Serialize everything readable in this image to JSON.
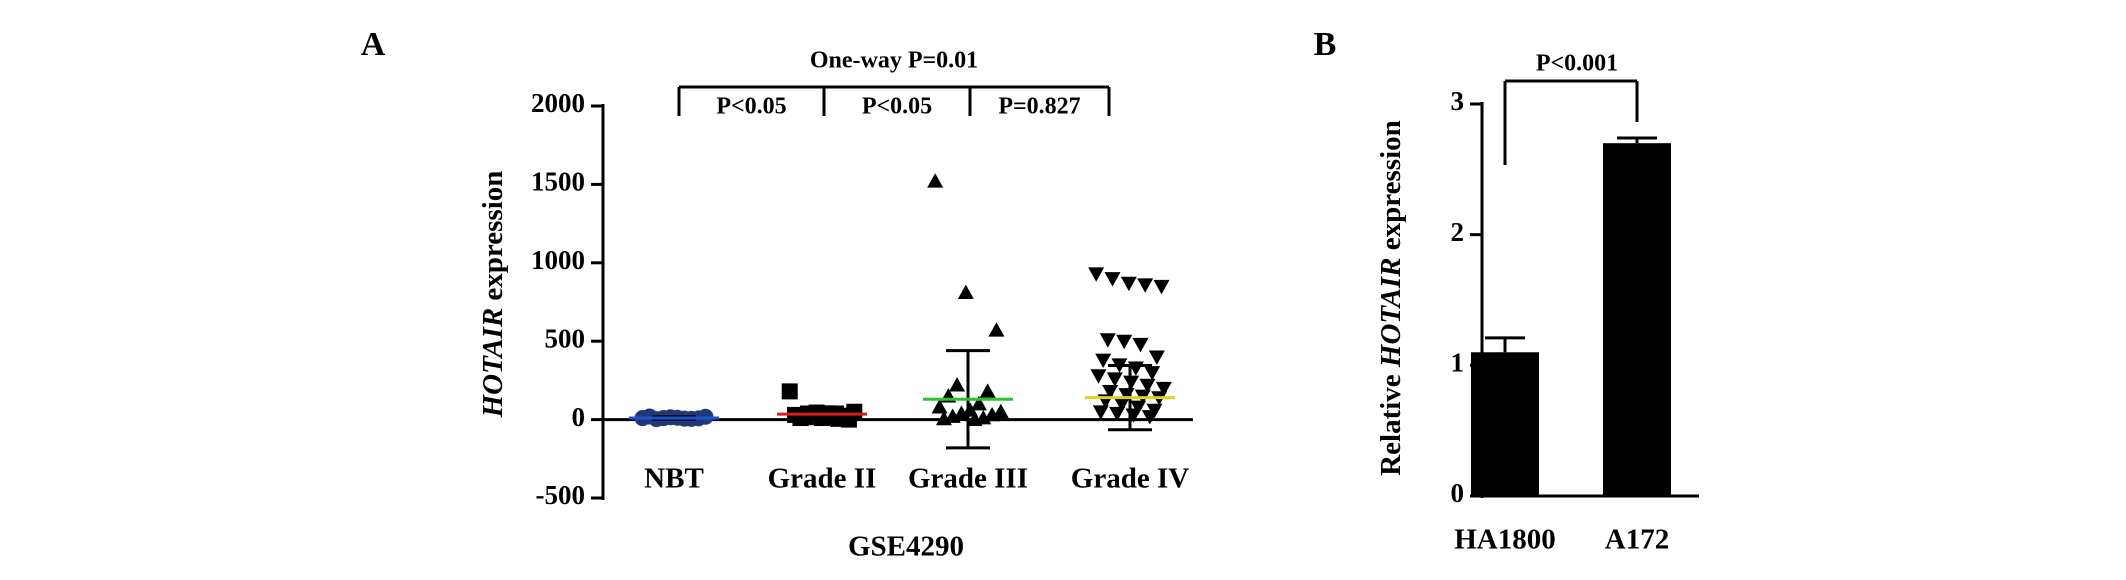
{
  "chart_data": [
    {
      "type": "dot_plot",
      "panel": "A",
      "ylabel": [
        "HOTAIR",
        "expression"
      ],
      "xlabel": "GSE4290",
      "categories": [
        "NBT",
        "Grade II",
        "Grade III",
        "Grade IV"
      ],
      "ylim": [
        -500,
        2000
      ],
      "yticks": [
        -500,
        0,
        500,
        1000,
        1500,
        2000
      ],
      "groups": [
        {
          "marker": "circle",
          "color": "#1f3a7a",
          "mean_color": "#2050d0",
          "mean": 10,
          "sd": 8,
          "values": [
            10,
            5,
            15,
            20,
            8,
            12,
            3,
            18,
            6,
            10
          ]
        },
        {
          "marker": "square",
          "color": "#000000",
          "mean_color": "#d02020",
          "mean": 35,
          "sd": 45,
          "values": [
            180,
            40,
            30,
            20,
            10,
            5,
            15,
            25,
            35,
            0,
            45,
            50,
            10
          ]
        },
        {
          "marker": "triangle-up",
          "color": "#000000",
          "mean_color": "#30c030",
          "mean": 130,
          "sd": 310,
          "values": [
            1520,
            810,
            570,
            220,
            180,
            150,
            100,
            80,
            60,
            50,
            40,
            30,
            20,
            10,
            5,
            0
          ]
        },
        {
          "marker": "triangle-down",
          "color": "#000000",
          "mean_color": "#e0d020",
          "mean": 140,
          "sd": 205,
          "values": [
            930,
            900,
            870,
            860,
            850,
            510,
            500,
            480,
            400,
            380,
            350,
            330,
            300,
            280,
            260,
            240,
            220,
            200,
            180,
            160,
            150,
            140,
            120,
            100,
            80,
            60,
            50,
            40,
            30,
            20
          ]
        }
      ],
      "annotations": [
        "One-way P=0.01",
        "P<0.05",
        "P<0.05",
        "P=0.827"
      ]
    },
    {
      "type": "bar",
      "panel": "B",
      "ylabel": [
        "Relative",
        "HOTAIR",
        "expression"
      ],
      "categories": [
        "HA1800",
        "A172"
      ],
      "values": [
        1.1,
        2.7
      ],
      "errors": [
        0.11,
        0.04
      ],
      "color": "#000000",
      "ylim": [
        0,
        3
      ],
      "yticks": [
        0,
        1,
        2,
        3
      ],
      "annotations": [
        "P<0.001"
      ]
    }
  ]
}
